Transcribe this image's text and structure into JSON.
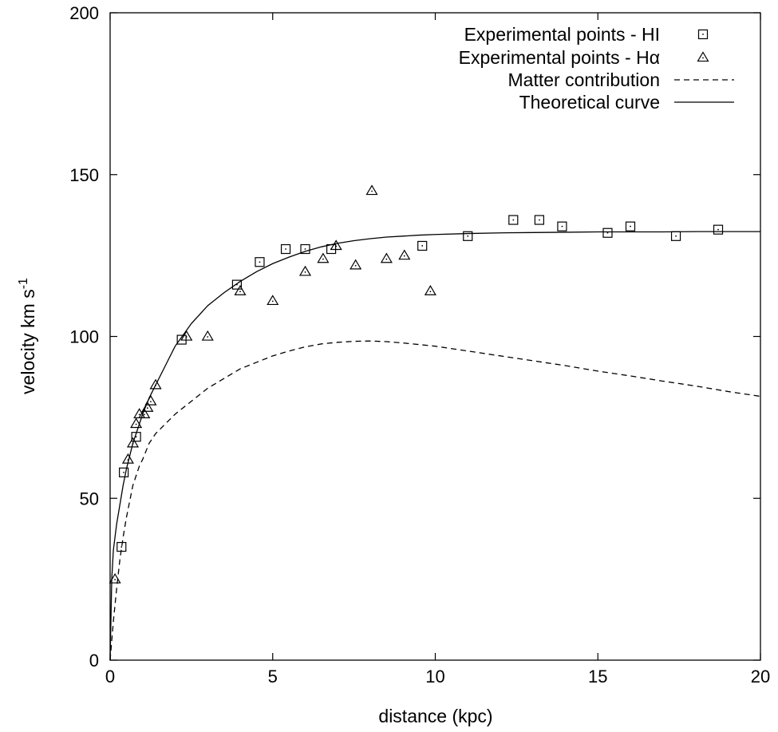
{
  "chart_data": {
    "type": "scatter",
    "title": "",
    "xlabel": "distance (kpc)",
    "ylabel_main": "velocity km s",
    "ylabel_sup": "-1",
    "xlim": [
      0,
      20
    ],
    "ylim": [
      0,
      200
    ],
    "xticks": [
      0,
      5,
      10,
      15,
      20
    ],
    "yticks": [
      0,
      50,
      100,
      150,
      200
    ],
    "xtick_labels": [
      "0",
      "5",
      "10",
      "15",
      "20"
    ],
    "ytick_labels": [
      "0",
      "50",
      "100",
      "150",
      "200"
    ],
    "grid": false,
    "legend_position": "top-right",
    "series": [
      {
        "name": "Experimental points - HI",
        "kind": "points",
        "marker": "square",
        "x": [
          0.35,
          0.42,
          0.8,
          2.2,
          3.9,
          4.6,
          5.4,
          6.0,
          6.8,
          9.6,
          11.0,
          12.4,
          13.2,
          13.9,
          15.3,
          16.0,
          17.4,
          18.7
        ],
        "y": [
          35,
          58,
          69,
          99,
          116,
          123,
          127,
          127,
          127,
          128,
          131,
          136,
          136,
          134,
          132,
          134,
          131,
          133
        ]
      },
      {
        "name": "Experimental points - Hα",
        "kind": "points",
        "marker": "triangle",
        "x": [
          0.15,
          0.55,
          0.7,
          0.8,
          0.9,
          1.05,
          1.15,
          1.25,
          1.4,
          2.35,
          3.0,
          4.0,
          5.0,
          6.0,
          6.55,
          6.95,
          7.55,
          8.05,
          8.5,
          9.05,
          9.85
        ],
        "y": [
          25,
          62,
          67,
          73,
          76,
          76,
          78,
          80,
          85,
          100,
          100,
          114,
          111,
          120,
          124,
          128,
          122,
          145,
          124,
          125,
          114
        ]
      },
      {
        "name": "Matter contribution",
        "kind": "line",
        "style": "dashed",
        "x": [
          0,
          0.1,
          0.2,
          0.3,
          0.4,
          0.5,
          0.6,
          0.7,
          0.8,
          0.9,
          1.0,
          1.2,
          1.4,
          1.6,
          1.8,
          2.0,
          2.5,
          3.0,
          3.5,
          4.0,
          4.5,
          5.0,
          5.5,
          6.0,
          6.5,
          7.0,
          7.5,
          8.0,
          8.5,
          9.0,
          9.5,
          10.0,
          11.0,
          12.0,
          13.0,
          14.0,
          15.0,
          16.0,
          17.0,
          18.0,
          19.0,
          20.0
        ],
        "y": [
          0,
          12,
          22,
          31,
          38,
          44,
          49,
          54,
          57,
          60,
          62,
          67,
          70,
          72,
          74,
          76,
          80,
          84,
          87,
          90,
          92,
          94,
          95.5,
          96.8,
          97.7,
          98.2,
          98.5,
          98.6,
          98.4,
          98.0,
          97.5,
          97.0,
          95.5,
          94.0,
          92.5,
          91.0,
          89.3,
          87.8,
          86.2,
          84.7,
          83.0,
          81.5
        ]
      },
      {
        "name": "Theoretical curve",
        "kind": "line",
        "style": "solid",
        "x": [
          0,
          0.05,
          0.1,
          0.2,
          0.3,
          0.4,
          0.5,
          0.6,
          0.7,
          0.8,
          0.9,
          1.0,
          1.2,
          1.4,
          1.6,
          1.8,
          2.0,
          2.5,
          3.0,
          3.5,
          4.0,
          4.5,
          5.0,
          5.5,
          6.0,
          6.5,
          7.0,
          7.5,
          8.0,
          8.5,
          9.0,
          9.5,
          10.0,
          11.0,
          12.0,
          13.0,
          14.0,
          15.0,
          16.0,
          17.0,
          18.0,
          19.0,
          20.0
        ],
        "y": [
          0,
          25,
          34,
          42,
          48,
          54,
          59,
          63,
          67,
          70,
          73,
          76,
          81,
          85,
          89,
          93,
          97,
          104,
          109.5,
          113.5,
          117,
          120,
          122.5,
          124.5,
          126.3,
          127.7,
          128.8,
          129.6,
          130.2,
          130.7,
          131.0,
          131.3,
          131.5,
          131.8,
          132.0,
          132.1,
          132.2,
          132.3,
          132.3,
          132.3,
          132.4,
          132.4,
          132.4
        ]
      }
    ]
  }
}
